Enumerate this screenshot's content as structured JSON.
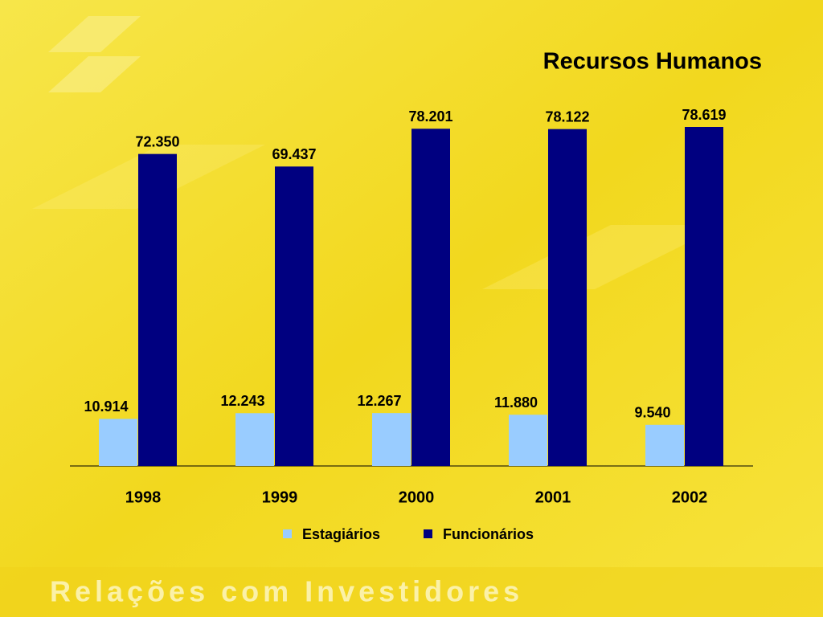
{
  "chart_data": {
    "type": "bar",
    "title": "Recursos Humanos",
    "categories": [
      "1998",
      "1999",
      "2000",
      "2001",
      "2002"
    ],
    "series": [
      {
        "name": "Estagiários",
        "color": "#99ccff",
        "values": [
          10914,
          12243,
          12267,
          11880,
          9540
        ],
        "value_labels": [
          "10.914",
          "12.243",
          "12.267",
          "11.880",
          "9.540"
        ]
      },
      {
        "name": "Funcionários",
        "color": "#000080",
        "values": [
          72350,
          69437,
          78201,
          78122,
          78619
        ],
        "value_labels": [
          "72.350",
          "69.437",
          "78.201",
          "78.122",
          "78.619"
        ]
      }
    ]
  },
  "footer": "Relações com Investidores"
}
